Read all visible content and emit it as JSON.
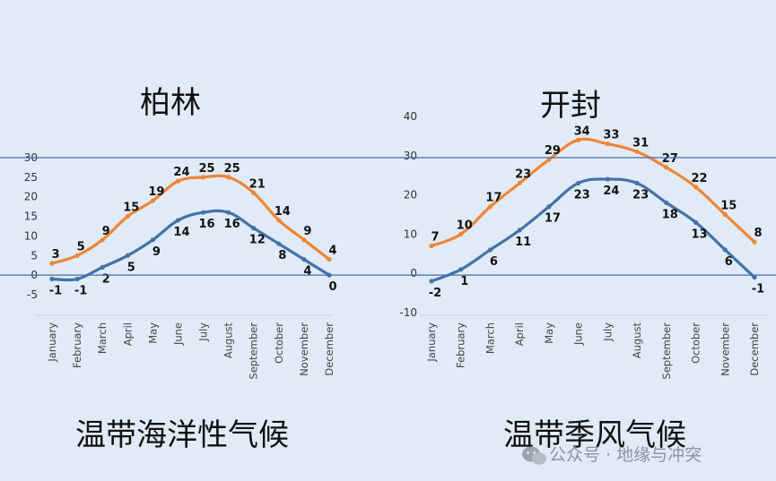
{
  "page": {
    "background": "#e1ebf7",
    "watermark_text": "公众号 · 地缘与冲突",
    "watermark_icon": "wechat-icon"
  },
  "chart_data": [
    {
      "type": "line",
      "title": "柏林",
      "caption": "温带海洋性气候",
      "categories": [
        "January",
        "February",
        "March",
        "April",
        "May",
        "June",
        "July",
        "August",
        "September",
        "October",
        "November",
        "December"
      ],
      "ylim": [
        -5,
        30
      ],
      "yticks": [
        -5,
        0,
        5,
        10,
        15,
        20,
        25,
        30
      ],
      "series": [
        {
          "color": "#f08536",
          "values": [
            3,
            5,
            9,
            15,
            19,
            24,
            25,
            25,
            21,
            14,
            9,
            4
          ]
        },
        {
          "color": "#4472a8",
          "values": [
            -1,
            -1,
            2,
            5,
            9,
            14,
            16,
            16,
            12,
            8,
            4,
            0
          ]
        }
      ]
    },
    {
      "type": "line",
      "title": "开封",
      "caption": "温带季风气候",
      "categories": [
        "January",
        "February",
        "March",
        "April",
        "May",
        "June",
        "July",
        "August",
        "September",
        "October",
        "November",
        "December"
      ],
      "ylim": [
        -10,
        40
      ],
      "yticks": [
        -10,
        0,
        10,
        20,
        30,
        40
      ],
      "series": [
        {
          "color": "#f08536",
          "values": [
            7,
            10,
            17,
            23,
            29,
            34,
            33,
            31,
            27,
            22,
            15,
            8
          ]
        },
        {
          "color": "#4472a8",
          "values": [
            -2,
            1,
            6,
            11,
            17,
            23,
            24,
            23,
            18,
            13,
            6,
            -1
          ]
        }
      ]
    }
  ]
}
